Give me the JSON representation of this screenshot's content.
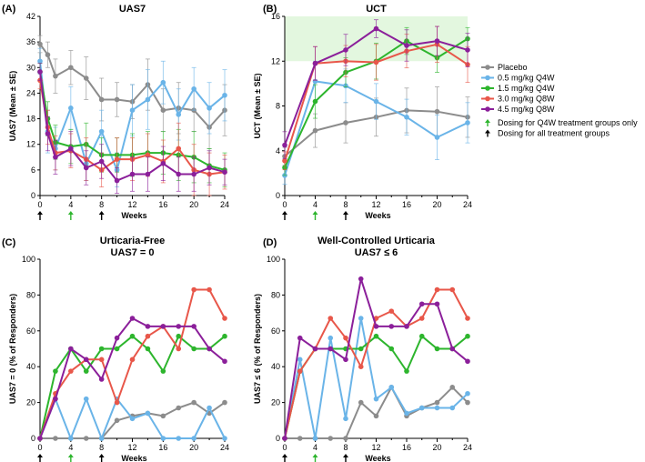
{
  "legend": {
    "series": [
      {
        "name": "Placebo",
        "color": "#8c8c8c"
      },
      {
        "name": "0.5 mg/kg Q4W",
        "color": "#6ab4e8"
      },
      {
        "name": "1.5 mg/kg Q4W",
        "color": "#2db52d"
      },
      {
        "name": "3.0 mg/kg Q8W",
        "color": "#e8574a"
      },
      {
        "name": "4.5 mg/kg Q8W",
        "color": "#8b1f9a"
      }
    ],
    "arrows": [
      {
        "label": "Dosing for Q4W treatment groups only",
        "color": "#2db52d"
      },
      {
        "label": "Dosing for all treatment groups",
        "color": "#000000"
      }
    ]
  },
  "chart_data": [
    {
      "id": "A",
      "panel_label": "(A)",
      "title": [
        "UAS7"
      ],
      "type": "line",
      "xlabel": "Weeks",
      "ylabel": "UAS7 (Mean ± SE)",
      "xlim": [
        0,
        24
      ],
      "ylim": [
        0,
        42
      ],
      "xticks": [
        0,
        4,
        8,
        12,
        16,
        20,
        24
      ],
      "yticks": [
        0,
        6,
        12,
        18,
        24,
        30,
        36,
        42
      ],
      "dosing_arrows": [
        {
          "x": 0,
          "color": "black"
        },
        {
          "x": 4,
          "color": "green"
        },
        {
          "x": 8,
          "color": "black"
        }
      ],
      "shaded_band": null,
      "series": [
        {
          "name": "Placebo",
          "x": [
            0,
            1,
            2,
            4,
            6,
            8,
            10,
            12,
            14,
            16,
            18,
            20,
            22,
            24
          ],
          "values": [
            35.5,
            33,
            28,
            30,
            27.5,
            22.5,
            22.5,
            22,
            26,
            20,
            20.5,
            20,
            16,
            20
          ],
          "errors": [
            2,
            3,
            4,
            4,
            5,
            5,
            4,
            4,
            6,
            5,
            6,
            5,
            5,
            6
          ]
        },
        {
          "name": "0.5 mg/kg Q4W",
          "x": [
            0,
            1,
            2,
            4,
            6,
            8,
            10,
            12,
            14,
            16,
            18,
            20,
            22,
            24
          ],
          "values": [
            31.5,
            15,
            11,
            20.5,
            7.5,
            15,
            6,
            20,
            22.5,
            26.5,
            19,
            25,
            20.5,
            23.5
          ],
          "errors": [
            3,
            5,
            5,
            5,
            4,
            5,
            4,
            6,
            7,
            5,
            6,
            5,
            6,
            6
          ]
        },
        {
          "name": "1.5 mg/kg Q4W",
          "x": [
            0,
            1,
            2,
            4,
            6,
            8,
            10,
            12,
            14,
            16,
            18,
            20,
            22,
            24
          ],
          "values": [
            29,
            18,
            12.5,
            11.5,
            12,
            9.5,
            9.5,
            9.5,
            10,
            10,
            9.5,
            9,
            7,
            6
          ],
          "errors": [
            2,
            4,
            4,
            4,
            5,
            4,
            4,
            5,
            5,
            5,
            6,
            6,
            4,
            4
          ]
        },
        {
          "name": "3.0 mg/kg Q8W",
          "x": [
            0,
            1,
            2,
            4,
            6,
            8,
            10,
            12,
            14,
            16,
            18,
            20,
            22,
            24
          ],
          "values": [
            27,
            16,
            10,
            10.5,
            8.5,
            6,
            8.5,
            8.5,
            9.5,
            8,
            11,
            6,
            5,
            5.5
          ],
          "errors": [
            2,
            4,
            4,
            4,
            5,
            4,
            5,
            5,
            5,
            5,
            6,
            6,
            5,
            4
          ]
        },
        {
          "name": "4.5 mg/kg Q8W",
          "x": [
            0,
            1,
            2,
            4,
            6,
            8,
            10,
            12,
            14,
            16,
            18,
            20,
            22,
            24
          ],
          "values": [
            29,
            14.5,
            9,
            11,
            6.5,
            8,
            3.5,
            5,
            5,
            7.5,
            5,
            5,
            6.5,
            5.5
          ],
          "errors": [
            2,
            4,
            4,
            4,
            4,
            4,
            3,
            4,
            4,
            4,
            4,
            4,
            4,
            3
          ]
        }
      ]
    },
    {
      "id": "B",
      "panel_label": "(B)",
      "title": [
        "UCT"
      ],
      "type": "line",
      "xlabel": "Weeks",
      "ylabel": "UCT (Mean ± SE)",
      "xlim": [
        0,
        24
      ],
      "ylim": [
        0,
        16
      ],
      "xticks": [
        0,
        4,
        8,
        12,
        16,
        20,
        24
      ],
      "yticks": [
        0,
        4,
        8,
        12,
        16
      ],
      "dosing_arrows": [
        {
          "x": 0,
          "color": "black"
        },
        {
          "x": 4,
          "color": "green"
        },
        {
          "x": 8,
          "color": "black"
        }
      ],
      "shaded_band": [
        12,
        16
      ],
      "series": [
        {
          "name": "Placebo",
          "x": [
            0,
            4,
            8,
            12,
            16,
            20,
            24
          ],
          "values": [
            3.5,
            5.8,
            6.5,
            7,
            7.6,
            7.5,
            7
          ],
          "errors": [
            0.8,
            1.5,
            1.8,
            1.7,
            2,
            2.2,
            1.8
          ]
        },
        {
          "name": "0.5 mg/kg Q4W",
          "x": [
            0,
            4,
            8,
            12,
            16,
            20,
            24
          ],
          "values": [
            1.8,
            10.2,
            9.8,
            8.4,
            7,
            5.2,
            6.5
          ],
          "errors": [
            0.8,
            1.8,
            1.5,
            1.6,
            1.6,
            2,
            1.8
          ]
        },
        {
          "name": "1.5 mg/kg Q4W",
          "x": [
            0,
            4,
            8,
            12,
            16,
            20,
            24
          ],
          "values": [
            2.5,
            8.4,
            11,
            12,
            13.8,
            12.3,
            14
          ],
          "errors": [
            0.7,
            1.5,
            1.3,
            1.6,
            1.2,
            1.3,
            1
          ]
        },
        {
          "name": "3.0 mg/kg Q8W",
          "x": [
            0,
            4,
            8,
            12,
            16,
            20,
            24
          ],
          "values": [
            3.1,
            11.8,
            12,
            11.9,
            12.9,
            13.5,
            11.7
          ],
          "errors": [
            0.8,
            1.5,
            1.4,
            1.6,
            1.5,
            1.6,
            1.6
          ]
        },
        {
          "name": "4.5 mg/kg Q8W",
          "x": [
            0,
            4,
            8,
            12,
            16,
            20,
            24
          ],
          "values": [
            4.5,
            11.8,
            13,
            14.9,
            13.4,
            13.8,
            13
          ],
          "errors": [
            1.2,
            1.5,
            1.4,
            0.8,
            1.4,
            1.3,
            1.5
          ]
        }
      ]
    },
    {
      "id": "C",
      "panel_label": "(C)",
      "title": [
        "Urticaria-Free",
        "UAS7 = 0"
      ],
      "type": "line",
      "xlabel": "Weeks",
      "ylabel": "UAS7 = 0 (% of Responders)",
      "xlim": [
        0,
        24
      ],
      "ylim": [
        0,
        100
      ],
      "xticks": [
        0,
        4,
        8,
        12,
        16,
        20,
        24
      ],
      "yticks": [
        0,
        20,
        40,
        60,
        80,
        100
      ],
      "dosing_arrows": [
        {
          "x": 0,
          "color": "black"
        },
        {
          "x": 4,
          "color": "green"
        },
        {
          "x": 8,
          "color": "black"
        }
      ],
      "shaded_band": null,
      "series": [
        {
          "name": "Placebo",
          "x": [
            0,
            2,
            4,
            6,
            8,
            10,
            12,
            14,
            16,
            18,
            20,
            22,
            24
          ],
          "values": [
            0,
            0,
            0,
            0,
            0,
            10,
            12.5,
            14,
            12.5,
            17,
            20,
            14,
            20
          ]
        },
        {
          "name": "0.5 mg/kg Q4W",
          "x": [
            0,
            2,
            4,
            6,
            8,
            10,
            12,
            14,
            16,
            18,
            20,
            22,
            24
          ],
          "values": [
            0,
            22,
            0,
            22,
            0,
            22,
            11,
            14,
            0,
            0,
            0,
            17,
            0
          ]
        },
        {
          "name": "1.5 mg/kg Q4W",
          "x": [
            0,
            2,
            4,
            6,
            8,
            10,
            12,
            14,
            16,
            18,
            20,
            22,
            24
          ],
          "values": [
            0,
            37.5,
            50,
            37.5,
            50,
            50,
            57,
            50,
            37.5,
            57,
            50,
            50,
            57
          ]
        },
        {
          "name": "3.0 mg/kg Q8W",
          "x": [
            0,
            2,
            4,
            6,
            8,
            10,
            12,
            14,
            16,
            18,
            20,
            22,
            24
          ],
          "values": [
            0,
            25,
            37.5,
            44,
            44,
            20,
            44,
            57,
            62.5,
            50,
            83,
            83,
            67
          ]
        },
        {
          "name": "4.5 mg/kg Q8W",
          "x": [
            0,
            2,
            4,
            6,
            8,
            10,
            12,
            14,
            16,
            18,
            20,
            22,
            24
          ],
          "values": [
            0,
            22,
            50,
            44,
            33,
            56,
            67,
            62.5,
            62.5,
            62.5,
            62.5,
            50,
            43
          ]
        }
      ]
    },
    {
      "id": "D",
      "panel_label": "(D)",
      "title": [
        "Well-Controlled Urticaria",
        "UAS7 ≤ 6"
      ],
      "type": "line",
      "xlabel": "Weeks",
      "ylabel": "UAS7 ≤ 6 (% of Responders)",
      "xlim": [
        0,
        24
      ],
      "ylim": [
        0,
        100
      ],
      "xticks": [
        0,
        4,
        8,
        12,
        16,
        20,
        24
      ],
      "yticks": [
        0,
        20,
        40,
        60,
        80,
        100
      ],
      "dosing_arrows": [
        {
          "x": 0,
          "color": "black"
        },
        {
          "x": 4,
          "color": "green"
        },
        {
          "x": 8,
          "color": "black"
        }
      ],
      "shaded_band": null,
      "series": [
        {
          "name": "Placebo",
          "x": [
            0,
            2,
            4,
            6,
            8,
            10,
            12,
            14,
            16,
            18,
            20,
            22,
            24
          ],
          "values": [
            0,
            0,
            0,
            0,
            0,
            20,
            12.5,
            28.5,
            12.5,
            17,
            20,
            28.5,
            20
          ]
        },
        {
          "name": "0.5 mg/kg Q4W",
          "x": [
            0,
            2,
            4,
            6,
            8,
            10,
            12,
            14,
            16,
            18,
            20,
            22,
            24
          ],
          "values": [
            0,
            44,
            0,
            56,
            11,
            67,
            22,
            28.5,
            14,
            17,
            17,
            17,
            25
          ]
        },
        {
          "name": "1.5 mg/kg Q4W",
          "x": [
            0,
            2,
            4,
            6,
            8,
            10,
            12,
            14,
            16,
            18,
            20,
            22,
            24
          ],
          "values": [
            0,
            37.5,
            50,
            50,
            50,
            50,
            57,
            50,
            37.5,
            57,
            50,
            50,
            57
          ]
        },
        {
          "name": "3.0 mg/kg Q8W",
          "x": [
            0,
            2,
            4,
            6,
            8,
            10,
            12,
            14,
            16,
            18,
            20,
            22,
            24
          ],
          "values": [
            0,
            37.5,
            50,
            67,
            56,
            40,
            67,
            71,
            62.5,
            67,
            83,
            83,
            67
          ]
        },
        {
          "name": "4.5 mg/kg Q8W",
          "x": [
            0,
            2,
            4,
            6,
            8,
            10,
            12,
            14,
            16,
            18,
            20,
            22,
            24
          ],
          "values": [
            0,
            56,
            50,
            50,
            44,
            89,
            62.5,
            62.5,
            62.5,
            75,
            75,
            50,
            43
          ]
        }
      ]
    }
  ]
}
